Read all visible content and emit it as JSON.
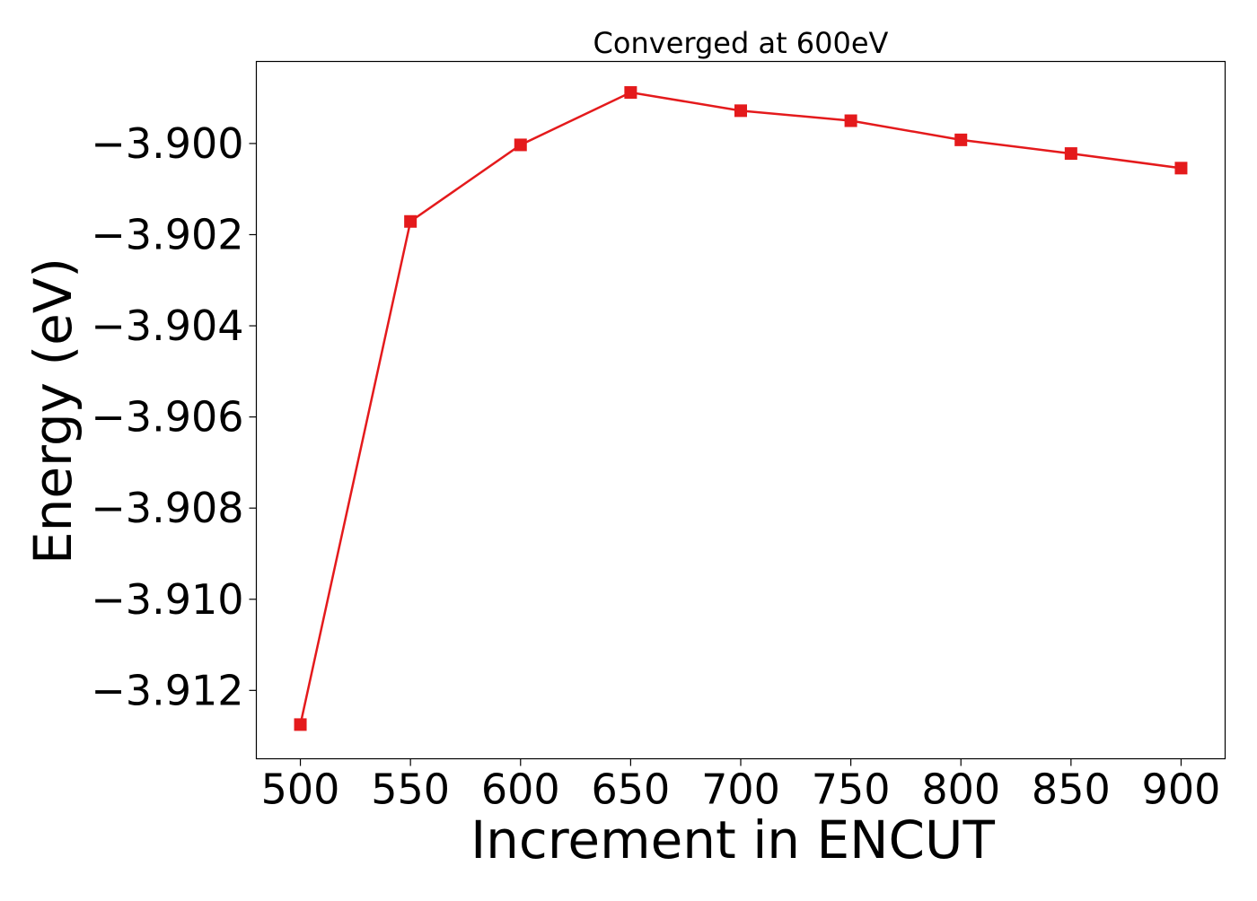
{
  "chart_data": {
    "type": "line",
    "title": "Converged at 600eV",
    "xlabel": "Increment in ENCUT",
    "ylabel": "Energy (eV)",
    "x": [
      500,
      550,
      600,
      650,
      700,
      750,
      800,
      850,
      900
    ],
    "series": [
      {
        "values": [
          -3.91275,
          -3.90171,
          -3.90003,
          -3.89888,
          -3.89928,
          -3.8995,
          -3.89992,
          -3.90022,
          -3.90054
        ],
        "color": "#e41a1c",
        "marker": "square"
      }
    ],
    "xticks": [
      500,
      550,
      600,
      650,
      700,
      750,
      800,
      850,
      900
    ],
    "xtick_labels": [
      "500",
      "550",
      "600",
      "650",
      "700",
      "750",
      "800",
      "850",
      "900"
    ],
    "yticks": [
      -3.9,
      -3.902,
      -3.904,
      -3.906,
      -3.908,
      -3.91,
      -3.912
    ],
    "ytick_labels": [
      "−3.900",
      "−3.902",
      "−3.904",
      "−3.906",
      "−3.908",
      "−3.910",
      "−3.912"
    ],
    "xlim": [
      480,
      920
    ],
    "ylim": [
      -3.9135,
      -3.8982
    ],
    "grid": false,
    "legend": "none"
  }
}
